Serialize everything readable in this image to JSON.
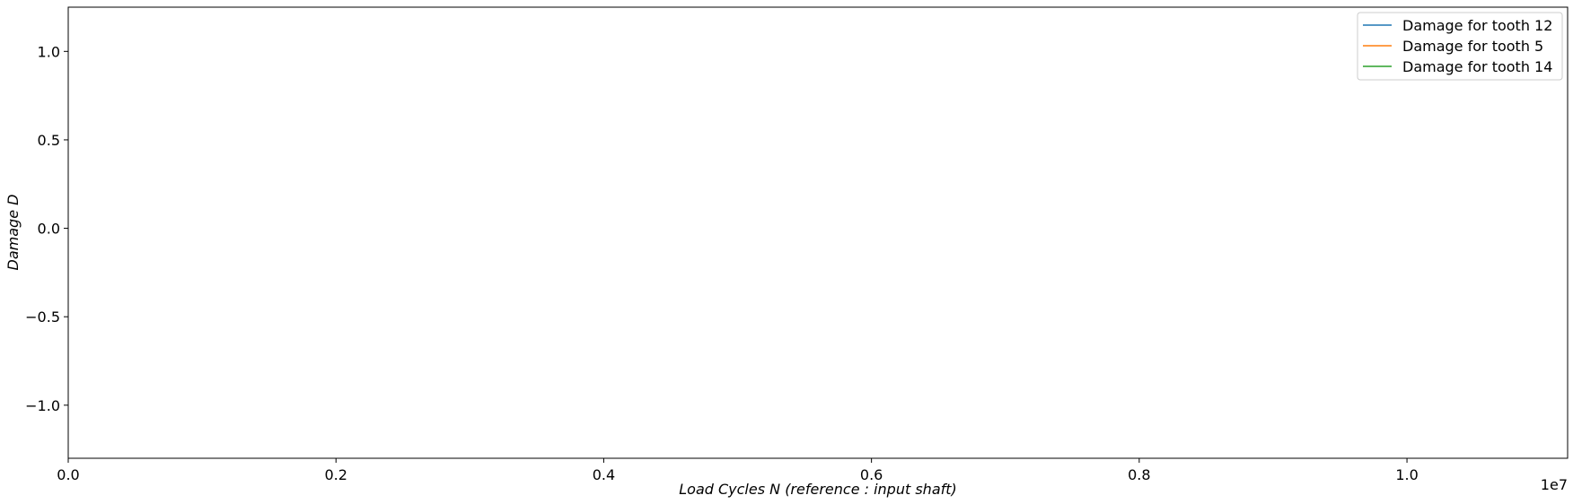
{
  "chart_data": {
    "type": "line",
    "xlabel": "Load Cycles N (reference :  input shaft)",
    "ylabel": "Damage D",
    "xlim": [
      0,
      11200000
    ],
    "ylim": [
      -1.3,
      1.25
    ],
    "x_scale_note": "1e7",
    "x_ticks": [
      0,
      2000000,
      4000000,
      6000000,
      8000000,
      10000000
    ],
    "x_tick_labels": [
      "0.0",
      "0.2",
      "0.4",
      "0.6",
      "0.8",
      "1.0"
    ],
    "y_ticks": [
      1.0,
      0.5,
      0.0,
      -0.5,
      -1.0
    ],
    "y_tick_labels": [
      "1.0",
      "0.5",
      "0.0",
      "−0.5",
      "−1.0"
    ],
    "grid": false,
    "legend_position": "top-right",
    "series": [
      {
        "name": "Damage for tooth 12",
        "color": "#1f77b4",
        "x": [],
        "y": []
      },
      {
        "name": "Damage for tooth 5",
        "color": "#ff7f0e",
        "x": [],
        "y": []
      },
      {
        "name": "Damage for tooth 14",
        "color": "#2ca02c",
        "x": [],
        "y": []
      }
    ]
  }
}
